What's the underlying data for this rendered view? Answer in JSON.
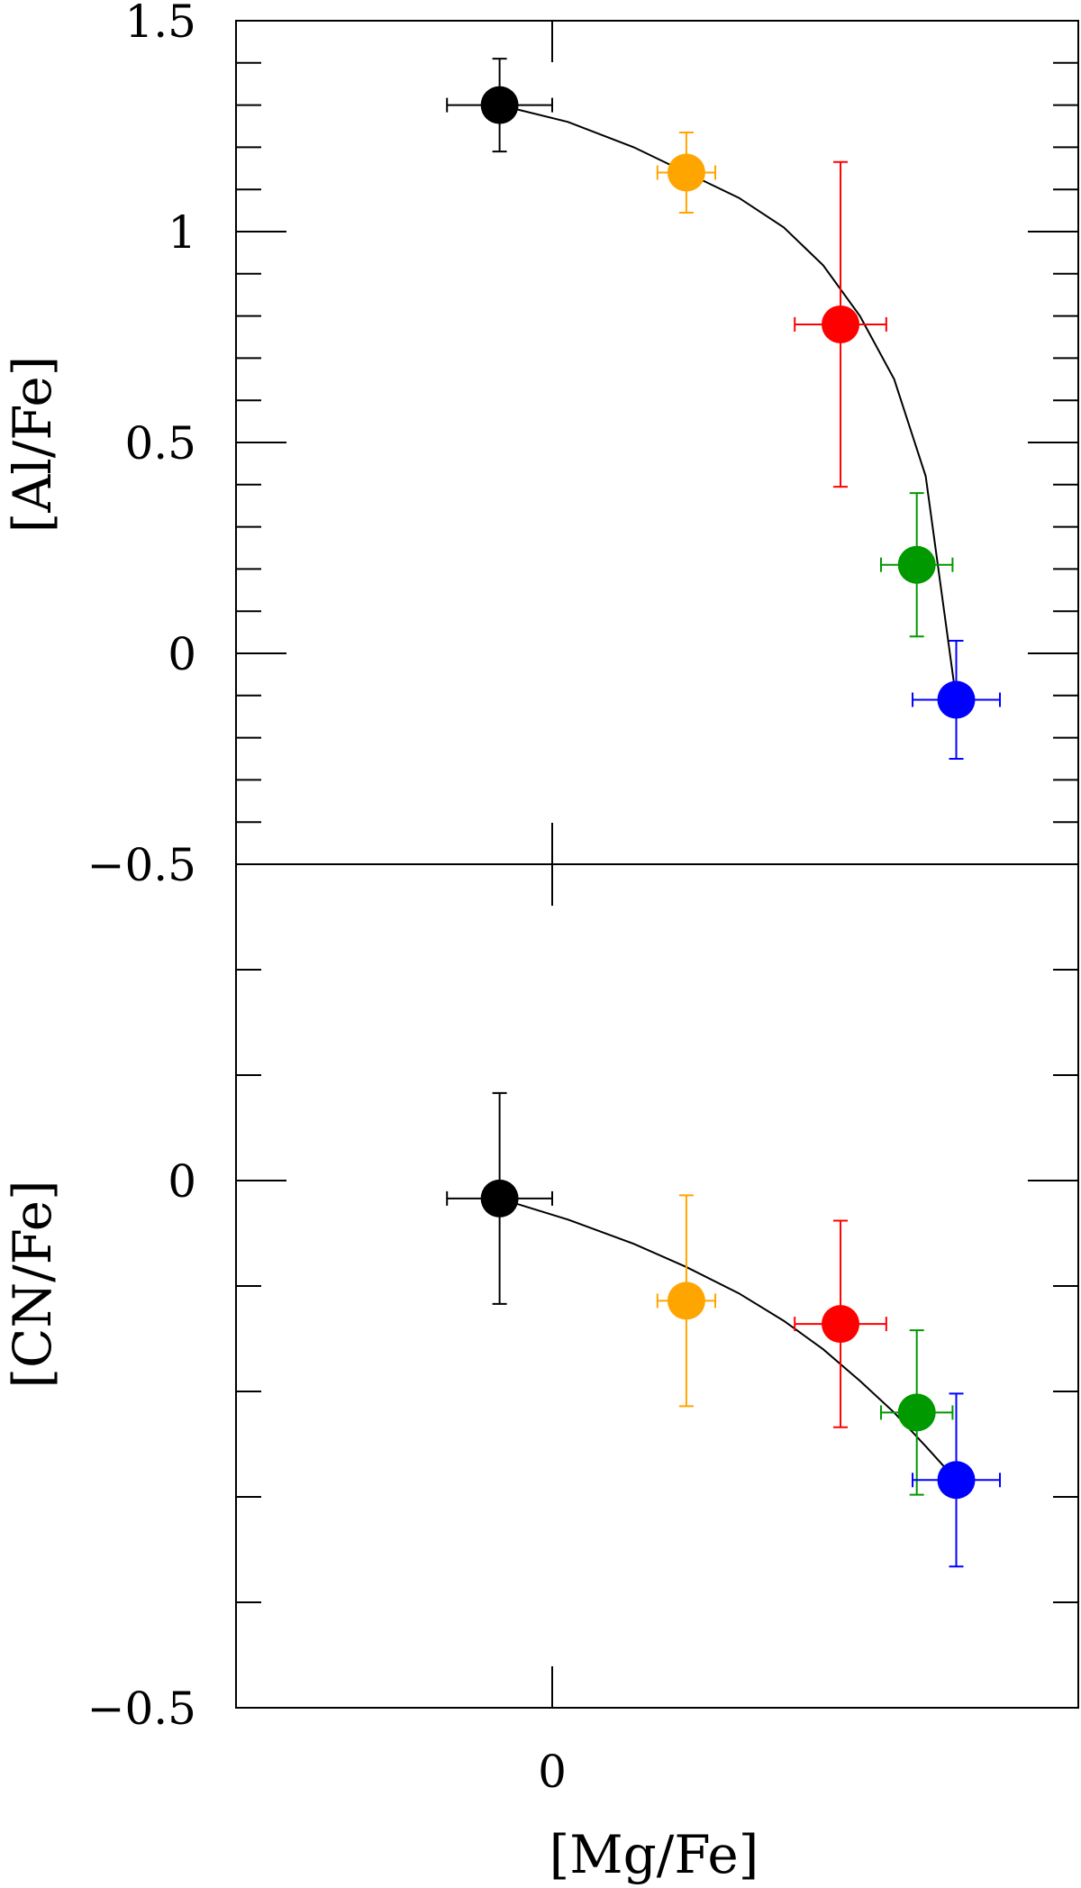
{
  "chart_data": [
    {
      "type": "scatter",
      "panel": "top",
      "ylabel": "[Al/Fe]",
      "xlabel": "",
      "xlim": [
        -0.6,
        1.0
      ],
      "ylim": [
        -0.5,
        1.5
      ],
      "yticks_major": [
        {
          "value": -0.5,
          "label": "−0.5"
        },
        {
          "value": 0,
          "label": "0"
        },
        {
          "value": 0.5,
          "label": "0.5"
        },
        {
          "value": 1,
          "label": "1"
        },
        {
          "value": 1.5,
          "label": "1.5"
        }
      ],
      "yticks_minor_step": 0.1,
      "xticks_major": [
        0
      ],
      "points": [
        {
          "x": -0.1,
          "y": 1.3,
          "xerr": 0.1,
          "yerr": 0.11,
          "color": "#000000"
        },
        {
          "x": 0.255,
          "y": 1.14,
          "xerr": 0.055,
          "yerr": 0.095,
          "color": "#FFA500"
        },
        {
          "x": 0.548,
          "y": 0.78,
          "xerr": 0.087,
          "yerr": 0.385,
          "color": "#FF0000"
        },
        {
          "x": 0.693,
          "y": 0.21,
          "xerr": 0.068,
          "yerr": 0.17,
          "color": "#009900"
        },
        {
          "x": 0.768,
          "y": -0.11,
          "xerr": 0.083,
          "yerr": 0.14,
          "color": "#0000FF"
        }
      ],
      "curve": {
        "x": [
          -0.1,
          0.03,
          0.155,
          0.255,
          0.355,
          0.44,
          0.515,
          0.585,
          0.65,
          0.71,
          0.768
        ],
        "y": [
          1.3,
          1.26,
          1.2,
          1.14,
          1.08,
          1.01,
          0.92,
          0.8,
          0.65,
          0.42,
          -0.11
        ],
        "color": "#000000"
      }
    },
    {
      "type": "scatter",
      "panel": "bottom",
      "ylabel": "[CN/Fe]",
      "xlabel": "[Mg/Fe]",
      "xlim": [
        -0.6,
        1.0
      ],
      "ylim": [
        -0.5,
        0.3
      ],
      "yticks_major": [
        {
          "value": -0.5,
          "label": "−0.5"
        },
        {
          "value": 0,
          "label": "0"
        }
      ],
      "yticks_minor": [
        -0.4,
        -0.3,
        -0.2,
        -0.1,
        0.1,
        0.2,
        0.3
      ],
      "xticks_major": [
        {
          "value": 0,
          "label": "0"
        }
      ],
      "points": [
        {
          "x": -0.1,
          "y": -0.017,
          "xerr": 0.1,
          "yerr": 0.1,
          "color": "#000000"
        },
        {
          "x": 0.255,
          "y": -0.114,
          "xerr": 0.055,
          "yerr": 0.1,
          "color": "#FFA500"
        },
        {
          "x": 0.548,
          "y": -0.136,
          "xerr": 0.087,
          "yerr": 0.098,
          "color": "#FF0000"
        },
        {
          "x": 0.693,
          "y": -0.22,
          "xerr": 0.068,
          "yerr": 0.078,
          "color": "#009900"
        },
        {
          "x": 0.768,
          "y": -0.284,
          "xerr": 0.083,
          "yerr": 0.082,
          "color": "#0000FF"
        }
      ],
      "curve": {
        "x": [
          -0.1,
          0.03,
          0.155,
          0.255,
          0.355,
          0.44,
          0.515,
          0.585,
          0.65,
          0.71,
          0.768
        ],
        "y": [
          -0.017,
          -0.037,
          -0.06,
          -0.082,
          -0.107,
          -0.133,
          -0.16,
          -0.19,
          -0.22,
          -0.252,
          -0.284
        ],
        "color": "#000000"
      }
    }
  ]
}
